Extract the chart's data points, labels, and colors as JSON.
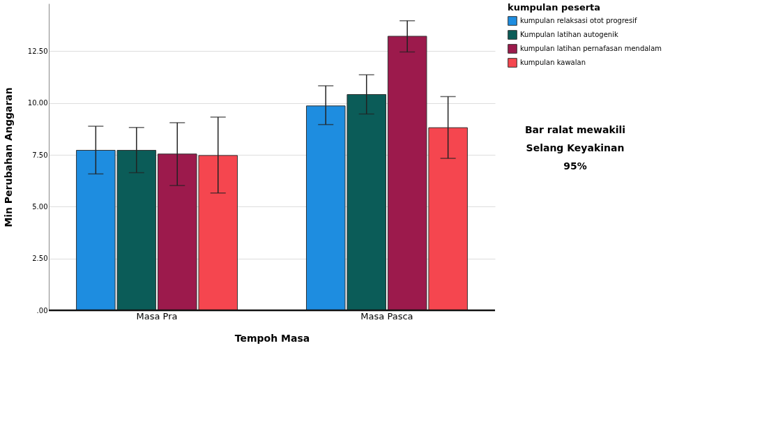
{
  "chart_data": {
    "type": "bar",
    "xlabel": "Tempoh Masa",
    "ylabel": "Min Perubahan Anggaran",
    "legend_title": "kumpulan peserta",
    "legend": "top right",
    "grid": "y",
    "categories": [
      "Masa Pra",
      "Masa Pasca"
    ],
    "ylim": [
      0,
      14.8
    ],
    "yticks": [
      {
        "value": 0,
        "label": ".00"
      },
      {
        "value": 2.5,
        "label": "2.50"
      },
      {
        "value": 5,
        "label": "5.00"
      },
      {
        "value": 7.5,
        "label": "7.50"
      },
      {
        "value": 10,
        "label": "10.00"
      },
      {
        "value": 12.5,
        "label": "12.50"
      }
    ],
    "series": [
      {
        "name": "kumpulan relaksasi otot progresif",
        "color": "#1e8de0",
        "values": [
          7.72,
          9.86
        ],
        "errors": [
          [
            6.58,
            8.88
          ],
          [
            8.96,
            10.83
          ]
        ]
      },
      {
        "name": "Kumpulan latihan autogenik",
        "color": "#0b5c58",
        "values": [
          7.72,
          10.41
        ],
        "errors": [
          [
            6.64,
            8.82
          ],
          [
            9.47,
            11.36
          ]
        ]
      },
      {
        "name": "kumpulan latihan pernafasan mendalam",
        "color": "#9c1a4c",
        "values": [
          7.54,
          13.22
        ],
        "errors": [
          [
            6.02,
            9.05
          ],
          [
            12.46,
            13.97
          ]
        ]
      },
      {
        "name": "kumpulan kawalan",
        "color": "#f5464f",
        "values": [
          7.47,
          8.81
        ],
        "errors": [
          [
            5.66,
            9.32
          ],
          [
            7.33,
            10.31
          ]
        ]
      }
    ],
    "annotations": [
      "Bar ralat mewakili\nSelang Keyakinan\n95%"
    ]
  }
}
